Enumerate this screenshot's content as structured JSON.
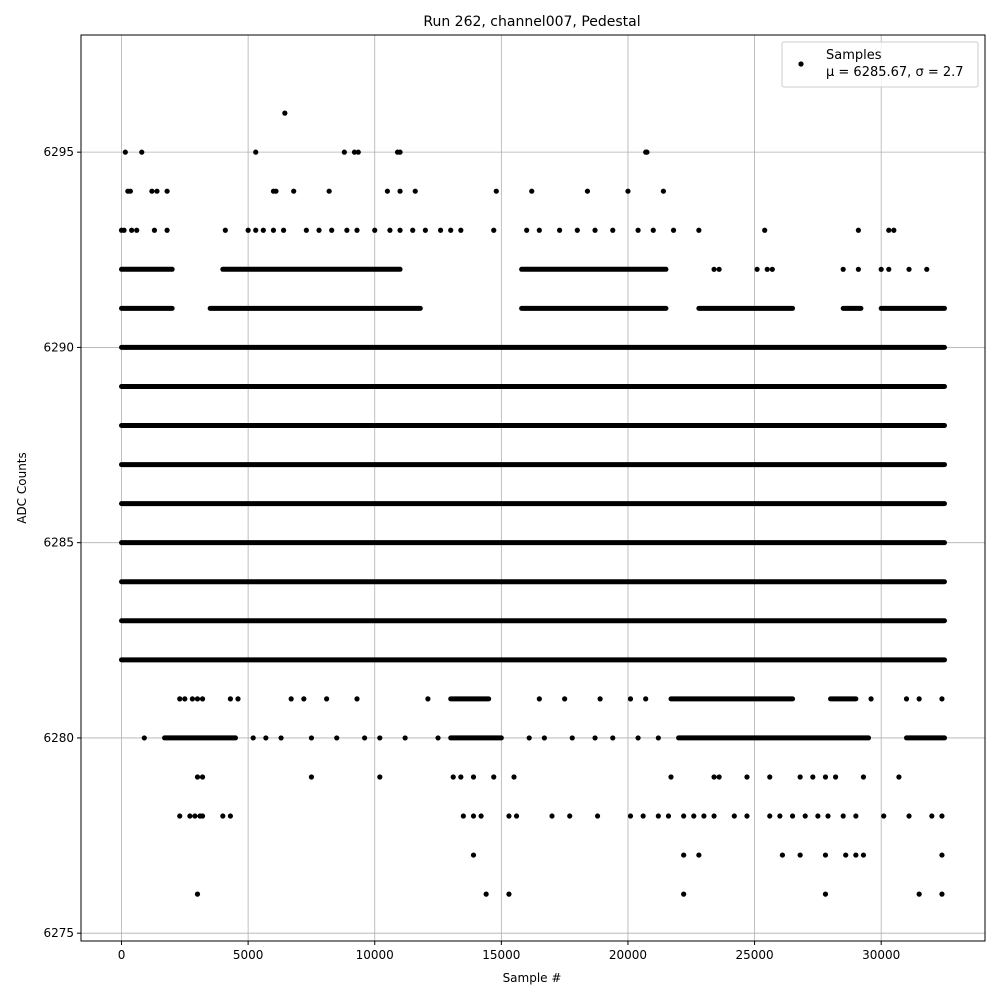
{
  "chart_data": {
    "type": "scatter",
    "title": "Run 262, channel007, Pedestal",
    "xlabel": "Sample #",
    "ylabel": "ADC Counts",
    "xlim": [
      -1600,
      34100
    ],
    "ylim": [
      6274.8,
      6298.0
    ],
    "x_ticks": [
      0,
      5000,
      10000,
      15000,
      20000,
      25000,
      30000
    ],
    "y_ticks": [
      6275,
      6280,
      6285,
      6290,
      6295
    ],
    "grid": true,
    "marker_color": "#000000",
    "legend": {
      "placement": "upper-right",
      "entries": [
        {
          "label": "Samples",
          "stat_line": "μ = 6285.67, σ = 2.7"
        }
      ]
    },
    "series": [
      {
        "name": "Samples",
        "x_range": [
          0,
          32500
        ],
        "dense_levels": [
          {
            "y": 6282,
            "segments": [
              [
                0,
                32500
              ]
            ]
          },
          {
            "y": 6283,
            "segments": [
              [
                0,
                32500
              ]
            ]
          },
          {
            "y": 6284,
            "segments": [
              [
                0,
                32500
              ]
            ]
          },
          {
            "y": 6285,
            "segments": [
              [
                0,
                32500
              ]
            ]
          },
          {
            "y": 6286,
            "segments": [
              [
                0,
                32500
              ]
            ]
          },
          {
            "y": 6287,
            "segments": [
              [
                0,
                32500
              ]
            ]
          },
          {
            "y": 6288,
            "segments": [
              [
                0,
                32500
              ]
            ]
          },
          {
            "y": 6289,
            "segments": [
              [
                0,
                32500
              ]
            ]
          },
          {
            "y": 6290,
            "segments": [
              [
                0,
                32500
              ]
            ]
          },
          {
            "y": 6291,
            "segments": [
              [
                0,
                2000
              ],
              [
                3500,
                11800
              ],
              [
                15800,
                21500
              ],
              [
                22800,
                26500
              ],
              [
                28500,
                29200
              ],
              [
                30000,
                32500
              ]
            ]
          },
          {
            "y": 6292,
            "segments": [
              [
                0,
                2000
              ],
              [
                4000,
                11000
              ],
              [
                15800,
                21500
              ]
            ]
          },
          {
            "y": 6280,
            "segments": [
              [
                1700,
                4500
              ],
              [
                13000,
                15000
              ],
              [
                22000,
                29500
              ],
              [
                31000,
                32500
              ]
            ]
          },
          {
            "y": 6281,
            "segments": [
              [
                13000,
                14500
              ],
              [
                21700,
                26500
              ],
              [
                28000,
                29000
              ]
            ]
          }
        ],
        "sparse_points": [
          [
            6450,
            6296
          ],
          [
            150,
            6295
          ],
          [
            800,
            6295
          ],
          [
            5300,
            6295
          ],
          [
            8800,
            6295
          ],
          [
            9200,
            6295
          ],
          [
            9350,
            6295
          ],
          [
            10900,
            6295
          ],
          [
            11000,
            6295
          ],
          [
            20700,
            6295
          ],
          [
            20750,
            6295
          ],
          [
            250,
            6294
          ],
          [
            350,
            6294
          ],
          [
            1200,
            6294
          ],
          [
            1400,
            6294
          ],
          [
            1800,
            6294
          ],
          [
            6000,
            6294
          ],
          [
            6100,
            6294
          ],
          [
            6800,
            6294
          ],
          [
            8200,
            6294
          ],
          [
            10500,
            6294
          ],
          [
            11000,
            6294
          ],
          [
            11600,
            6294
          ],
          [
            14800,
            6294
          ],
          [
            16200,
            6294
          ],
          [
            18400,
            6294
          ],
          [
            20000,
            6294
          ],
          [
            21400,
            6294
          ],
          [
            0,
            6293
          ],
          [
            100,
            6293
          ],
          [
            400,
            6293
          ],
          [
            600,
            6293
          ],
          [
            1300,
            6293
          ],
          [
            1800,
            6293
          ],
          [
            4100,
            6293
          ],
          [
            5000,
            6293
          ],
          [
            5300,
            6293
          ],
          [
            5600,
            6293
          ],
          [
            6000,
            6293
          ],
          [
            6400,
            6293
          ],
          [
            7300,
            6293
          ],
          [
            7800,
            6293
          ],
          [
            8300,
            6293
          ],
          [
            8900,
            6293
          ],
          [
            9300,
            6293
          ],
          [
            10000,
            6293
          ],
          [
            10600,
            6293
          ],
          [
            11000,
            6293
          ],
          [
            11500,
            6293
          ],
          [
            12000,
            6293
          ],
          [
            12600,
            6293
          ],
          [
            13000,
            6293
          ],
          [
            13400,
            6293
          ],
          [
            14700,
            6293
          ],
          [
            16000,
            6293
          ],
          [
            16500,
            6293
          ],
          [
            17300,
            6293
          ],
          [
            18000,
            6293
          ],
          [
            18700,
            6293
          ],
          [
            19400,
            6293
          ],
          [
            20400,
            6293
          ],
          [
            21000,
            6293
          ],
          [
            21800,
            6293
          ],
          [
            22800,
            6293
          ],
          [
            25400,
            6293
          ],
          [
            29100,
            6293
          ],
          [
            30300,
            6293
          ],
          [
            30500,
            6293
          ],
          [
            23400,
            6292
          ],
          [
            23600,
            6292
          ],
          [
            25100,
            6292
          ],
          [
            25500,
            6292
          ],
          [
            25700,
            6292
          ],
          [
            28500,
            6292
          ],
          [
            29100,
            6292
          ],
          [
            30000,
            6292
          ],
          [
            30300,
            6292
          ],
          [
            31100,
            6292
          ],
          [
            31800,
            6292
          ],
          [
            2300,
            6281
          ],
          [
            2500,
            6281
          ],
          [
            2800,
            6281
          ],
          [
            3000,
            6281
          ],
          [
            3200,
            6281
          ],
          [
            4300,
            6281
          ],
          [
            4600,
            6281
          ],
          [
            6700,
            6281
          ],
          [
            7200,
            6281
          ],
          [
            8100,
            6281
          ],
          [
            9300,
            6281
          ],
          [
            12100,
            6281
          ],
          [
            16500,
            6281
          ],
          [
            17500,
            6281
          ],
          [
            18900,
            6281
          ],
          [
            20100,
            6281
          ],
          [
            20700,
            6281
          ],
          [
            29600,
            6281
          ],
          [
            31000,
            6281
          ],
          [
            31500,
            6281
          ],
          [
            32400,
            6281
          ],
          [
            900,
            6280
          ],
          [
            5200,
            6280
          ],
          [
            5700,
            6280
          ],
          [
            6300,
            6280
          ],
          [
            7500,
            6280
          ],
          [
            8500,
            6280
          ],
          [
            9600,
            6280
          ],
          [
            10200,
            6280
          ],
          [
            11200,
            6280
          ],
          [
            12500,
            6280
          ],
          [
            16100,
            6280
          ],
          [
            16700,
            6280
          ],
          [
            17800,
            6280
          ],
          [
            18700,
            6280
          ],
          [
            19400,
            6280
          ],
          [
            20400,
            6280
          ],
          [
            21200,
            6280
          ],
          [
            3000,
            6279
          ],
          [
            3200,
            6279
          ],
          [
            7500,
            6279
          ],
          [
            10200,
            6279
          ],
          [
            13100,
            6279
          ],
          [
            13400,
            6279
          ],
          [
            13900,
            6279
          ],
          [
            14700,
            6279
          ],
          [
            15500,
            6279
          ],
          [
            21700,
            6279
          ],
          [
            23400,
            6279
          ],
          [
            23600,
            6279
          ],
          [
            24700,
            6279
          ],
          [
            25600,
            6279
          ],
          [
            26800,
            6279
          ],
          [
            27300,
            6279
          ],
          [
            27800,
            6279
          ],
          [
            28200,
            6279
          ],
          [
            29300,
            6279
          ],
          [
            30700,
            6279
          ],
          [
            2300,
            6278
          ],
          [
            2700,
            6278
          ],
          [
            2900,
            6278
          ],
          [
            3100,
            6278
          ],
          [
            3200,
            6278
          ],
          [
            4000,
            6278
          ],
          [
            4300,
            6278
          ],
          [
            13500,
            6278
          ],
          [
            13900,
            6278
          ],
          [
            14200,
            6278
          ],
          [
            15300,
            6278
          ],
          [
            15600,
            6278
          ],
          [
            17000,
            6278
          ],
          [
            17700,
            6278
          ],
          [
            18800,
            6278
          ],
          [
            20100,
            6278
          ],
          [
            20600,
            6278
          ],
          [
            21200,
            6278
          ],
          [
            21600,
            6278
          ],
          [
            22200,
            6278
          ],
          [
            22600,
            6278
          ],
          [
            23000,
            6278
          ],
          [
            23400,
            6278
          ],
          [
            24200,
            6278
          ],
          [
            24700,
            6278
          ],
          [
            25600,
            6278
          ],
          [
            26000,
            6278
          ],
          [
            26500,
            6278
          ],
          [
            27000,
            6278
          ],
          [
            27500,
            6278
          ],
          [
            27900,
            6278
          ],
          [
            28500,
            6278
          ],
          [
            29000,
            6278
          ],
          [
            30100,
            6278
          ],
          [
            31100,
            6278
          ],
          [
            32000,
            6278
          ],
          [
            32400,
            6278
          ],
          [
            13900,
            6277
          ],
          [
            22200,
            6277
          ],
          [
            22800,
            6277
          ],
          [
            26100,
            6277
          ],
          [
            26800,
            6277
          ],
          [
            27800,
            6277
          ],
          [
            28600,
            6277
          ],
          [
            29000,
            6277
          ],
          [
            29300,
            6277
          ],
          [
            32400,
            6277
          ],
          [
            3000,
            6276
          ],
          [
            14400,
            6276
          ],
          [
            15300,
            6276
          ],
          [
            22200,
            6276
          ],
          [
            27800,
            6276
          ],
          [
            31500,
            6276
          ],
          [
            32400,
            6276
          ]
        ]
      }
    ]
  }
}
